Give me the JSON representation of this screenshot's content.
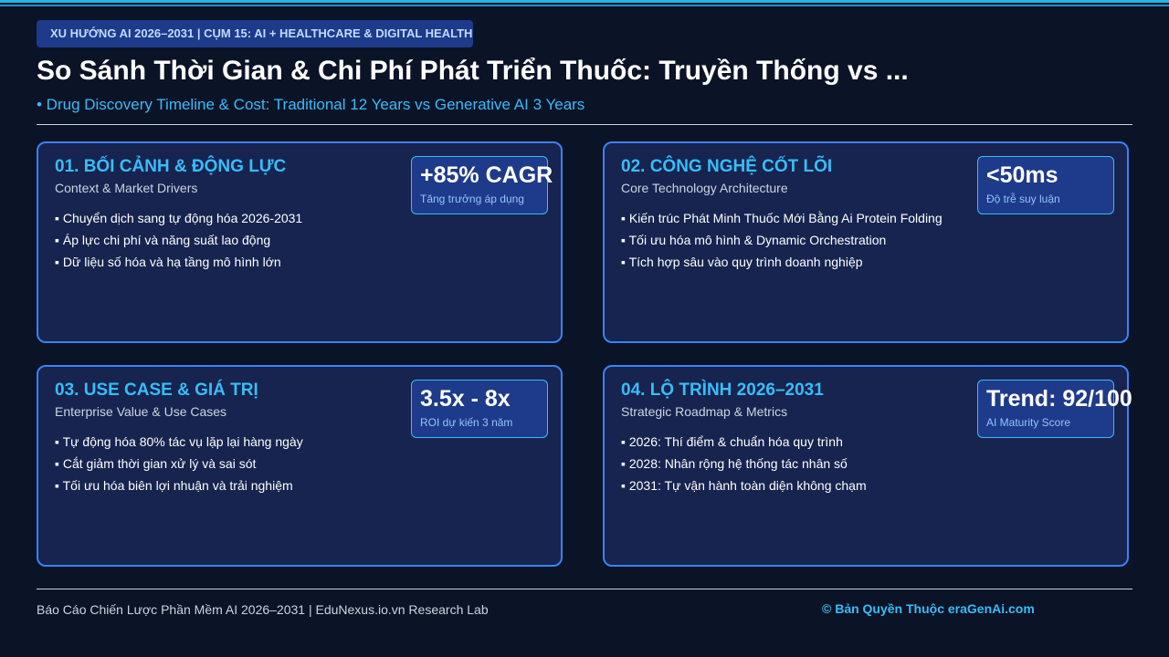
{
  "header": {
    "tag": "XU HƯỚNG AI 2026–2031 | CỤM 15: AI + HEALTHCARE & DIGITAL HEALTH",
    "title": "So Sánh Thời Gian & Chi Phí Phát Triển Thuốc: Truyền Thống vs ...",
    "subtitle": "• Drug Discovery Timeline & Cost: Traditional 12 Years vs Generative AI 3 Years"
  },
  "cards": [
    {
      "title": "01. BỐI CẢNH & ĐỘNG LỰC",
      "subtitle": "Context & Market Drivers",
      "bullets": [
        "Chuyển dịch sang tự động hóa 2026-2031",
        "Áp lực chi phí và năng suất lao động",
        "Dữ liệu số hóa và hạ tầng mô hình lớn"
      ],
      "metric": {
        "value": "+85% CAGR",
        "label": "Tăng trưởng áp dụng"
      }
    },
    {
      "title": "02. CÔNG NGHỆ CỐT LÕI",
      "subtitle": "Core Technology Architecture",
      "bullets": [
        "Kiến trúc Phát Minh Thuốc Mới Bằng Ai Protein Folding",
        "Tối ưu hóa mô hình & Dynamic Orchestration",
        "Tích hợp sâu vào quy trình doanh nghiệp"
      ],
      "metric": {
        "value": "<50ms",
        "label": "Độ trễ suy luận"
      }
    },
    {
      "title": "03. USE CASE & GIÁ TRỊ",
      "subtitle": "Enterprise Value & Use Cases",
      "bullets": [
        "Tự động hóa 80% tác vụ lặp lại hàng ngày",
        "Cắt giảm thời gian xử lý và sai sót",
        "Tối ưu hóa biên lợi nhuận và trải nghiệm"
      ],
      "metric": {
        "value": "3.5x - 8x",
        "label": "ROI dự kiến 3 năm"
      }
    },
    {
      "title": "04. LỘ TRÌNH 2026–2031",
      "subtitle": "Strategic Roadmap & Metrics",
      "bullets": [
        "2026: Thí điểm & chuẩn hóa quy trình",
        "2028: Nhân rộng hệ thống tác nhân số",
        "2031: Tự vận hành toàn diện không chạm"
      ],
      "metric": {
        "value": "Trend: 92/100",
        "label": "AI Maturity Score"
      }
    }
  ],
  "footer": {
    "left": "Báo Cáo Chiến Lược Phần Mềm AI 2026–2031 | EduNexus.io.vn Research Lab",
    "right": "© Bản Quyền Thuộc eraGenAi.com"
  }
}
